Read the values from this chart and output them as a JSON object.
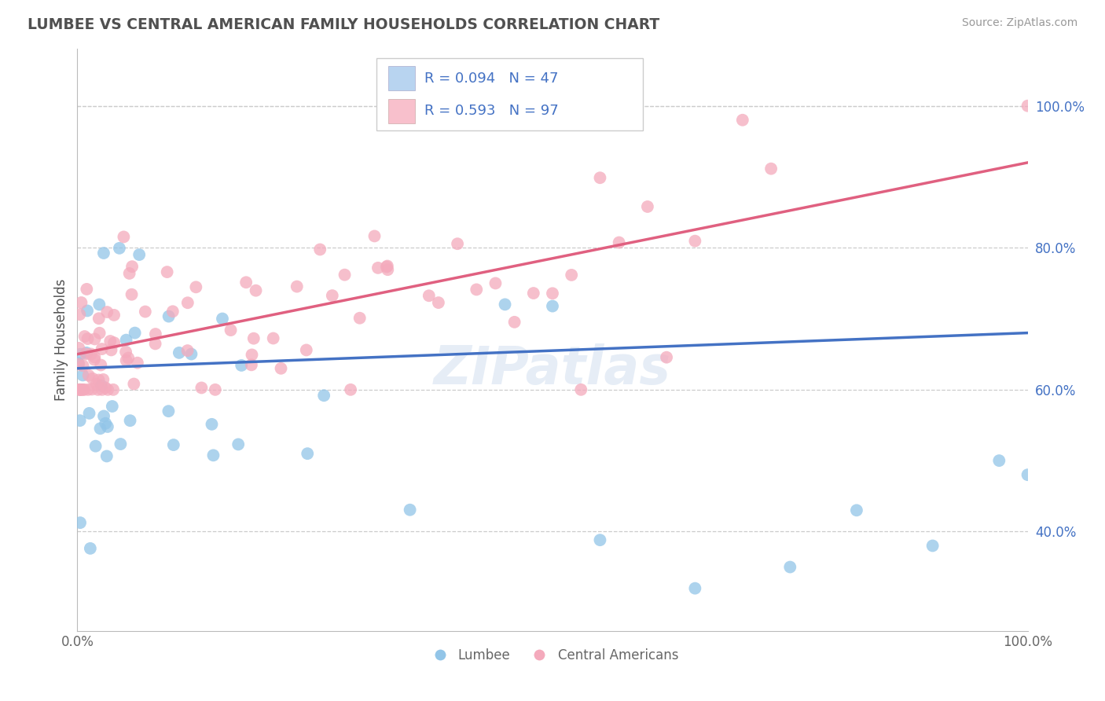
{
  "title": "LUMBEE VS CENTRAL AMERICAN FAMILY HOUSEHOLDS CORRELATION CHART",
  "source": "Source: ZipAtlas.com",
  "ylabel": "Family Households",
  "legend_labels": [
    "Lumbee",
    "Central Americans"
  ],
  "blue_color": "#92C5E8",
  "pink_color": "#F4AABC",
  "blue_line_color": "#4472C4",
  "pink_line_color": "#E06080",
  "title_color": "#505050",
  "watermark": "ZIPatlas",
  "r_blue": 0.094,
  "n_blue": 47,
  "r_pink": 0.593,
  "n_pink": 97,
  "xlim": [
    0,
    100
  ],
  "ylim": [
    26,
    108
  ],
  "ytick_vals": [
    40,
    60,
    80,
    100
  ],
  "ytick_labels": [
    "40.0%",
    "60.0%",
    "80.0%",
    "100.0%"
  ],
  "xtick_vals": [
    0,
    100
  ],
  "xtick_labels": [
    "0.0%",
    "100.0%"
  ],
  "grid_color": "#CCCCCC",
  "bg_color": "#FFFFFF",
  "legend_box_color_blue": "#B8D4F0",
  "legend_box_color_pink": "#F8C0CC",
  "blue_trend_start": 63,
  "blue_trend_end": 68,
  "pink_trend_start": 65,
  "pink_trend_end": 92
}
